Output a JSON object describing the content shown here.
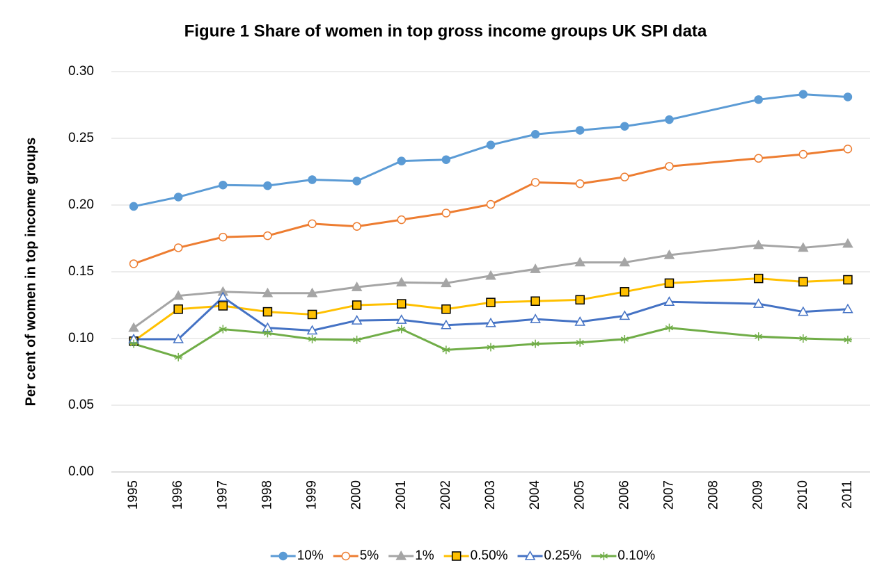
{
  "chart_data": {
    "type": "line",
    "title": "Figure 1 Share of women in top gross income groups UK SPI data",
    "y_label": "Per cent of women in top income groups",
    "x": [
      1995,
      1996,
      1997,
      1998,
      1999,
      2000,
      2001,
      2002,
      2003,
      2004,
      2005,
      2006,
      2007,
      2009,
      2010,
      2011
    ],
    "xlim": [
      1994.5,
      2011.5
    ],
    "xticks": [
      1995,
      1996,
      1997,
      1998,
      1999,
      2000,
      2001,
      2002,
      2003,
      2004,
      2005,
      2006,
      2007,
      2008,
      2009,
      2010,
      2011
    ],
    "ylim": [
      0,
      0.3
    ],
    "yticks": [
      {
        "value": 0,
        "label": "0.00"
      },
      {
        "value": 0.05,
        "label": "0.05"
      },
      {
        "value": 0.1,
        "label": "0.10"
      },
      {
        "value": 0.15,
        "label": "0.15"
      },
      {
        "value": 0.2,
        "label": "0.20"
      },
      {
        "value": 0.25,
        "label": "0.25"
      },
      {
        "value": 0.3,
        "label": "0.30"
      }
    ],
    "grid": true,
    "legend": "bottom",
    "series": [
      {
        "name": "10%",
        "color": "#5b9bd5",
        "marker": "circle",
        "marker_fill": "#5b9bd5",
        "values": [
          0.199,
          0.206,
          0.215,
          0.2145,
          0.219,
          0.218,
          0.233,
          0.234,
          0.245,
          0.253,
          0.256,
          0.259,
          0.264,
          0.279,
          0.283,
          0.281
        ]
      },
      {
        "name": "5%",
        "color": "#ed7d31",
        "marker": "circle",
        "marker_fill": "#ffffff",
        "values": [
          0.156,
          0.168,
          0.176,
          0.177,
          0.186,
          0.184,
          0.189,
          0.194,
          0.2005,
          0.217,
          0.216,
          0.221,
          0.229,
          0.235,
          0.238,
          0.242
        ]
      },
      {
        "name": "1%",
        "color": "#a5a5a5",
        "marker": "triangle",
        "marker_fill": "#a5a5a5",
        "values": [
          0.108,
          0.132,
          0.135,
          0.134,
          0.134,
          0.1385,
          0.142,
          0.1415,
          0.147,
          0.152,
          0.157,
          0.157,
          0.1625,
          0.17,
          0.168,
          0.171
        ]
      },
      {
        "name": "0.50%",
        "color": "#ffc000",
        "marker": "square",
        "marker_fill": "#ffc000",
        "marker_stroke": "#000000",
        "values": [
          0.098,
          0.122,
          0.1245,
          0.12,
          0.118,
          0.125,
          0.126,
          0.122,
          0.127,
          0.128,
          0.129,
          0.135,
          0.1415,
          0.145,
          0.1425,
          0.144
        ]
      },
      {
        "name": "0.25%",
        "color": "#4472c4",
        "marker": "triangle",
        "marker_fill": "#ffffff",
        "values": [
          0.0995,
          0.0995,
          0.131,
          0.108,
          0.106,
          0.1135,
          0.114,
          0.11,
          0.1115,
          0.1145,
          0.1125,
          0.117,
          0.1275,
          0.126,
          0.12,
          0.122
        ]
      },
      {
        "name": "0.10%",
        "color": "#70ad47",
        "marker": "star",
        "marker_fill": "#70ad47",
        "values": [
          0.096,
          0.086,
          0.107,
          0.104,
          0.0995,
          0.099,
          0.107,
          0.0915,
          0.0935,
          0.096,
          0.097,
          0.0995,
          0.108,
          0.1015,
          0.1,
          0.099
        ]
      }
    ]
  }
}
